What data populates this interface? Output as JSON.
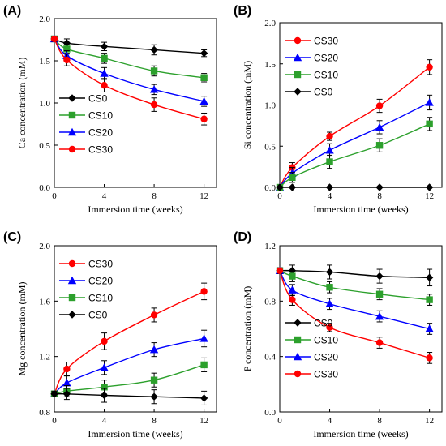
{
  "chart_data": [
    {
      "type": "line",
      "panel_label": "(A)",
      "title": "",
      "xlabel": "Immersion time (weeks)",
      "ylabel": "Ca concentration (mM)",
      "xlim": [
        0,
        13
      ],
      "ylim": [
        0,
        2
      ],
      "xticks": [
        "0",
        "4",
        "8",
        "12"
      ],
      "yticks": [
        "0.0",
        "0.5",
        "1.0",
        "1.5",
        "2.0"
      ],
      "legend_position": "bottom-left",
      "x": [
        0,
        1,
        4,
        8,
        12
      ],
      "series": [
        {
          "name": "CS0",
          "color": "#000000",
          "marker": "diamond",
          "values": [
            1.76,
            1.71,
            1.67,
            1.63,
            1.59
          ],
          "error": [
            0.03,
            0.05,
            0.05,
            0.06,
            0.04
          ]
        },
        {
          "name": "CS10",
          "color": "#2ca02c",
          "marker": "square",
          "values": [
            1.76,
            1.64,
            1.53,
            1.38,
            1.3
          ],
          "error": [
            0.03,
            0.05,
            0.06,
            0.06,
            0.05
          ]
        },
        {
          "name": "CS20",
          "color": "#0000ff",
          "marker": "triangle",
          "values": [
            1.76,
            1.56,
            1.35,
            1.16,
            1.02
          ],
          "error": [
            0.03,
            0.06,
            0.07,
            0.06,
            0.06
          ]
        },
        {
          "name": "CS30",
          "color": "#ff0000",
          "marker": "circle",
          "values": [
            1.76,
            1.51,
            1.21,
            0.98,
            0.81
          ],
          "error": [
            0.03,
            0.07,
            0.08,
            0.08,
            0.07
          ]
        }
      ]
    },
    {
      "type": "line",
      "panel_label": "(B)",
      "title": "",
      "xlabel": "Immersion time (weeks)",
      "ylabel": "Si concentration (mM)",
      "xlim": [
        0,
        13
      ],
      "ylim": [
        0,
        2
      ],
      "xticks": [
        "0",
        "4",
        "8",
        "12"
      ],
      "yticks": [
        "0.0",
        "0.5",
        "1.0",
        "1.5",
        "2.0"
      ],
      "legend_position": "top-left",
      "x": [
        0,
        1,
        4,
        8,
        12
      ],
      "series": [
        {
          "name": "CS30",
          "color": "#ff0000",
          "marker": "circle",
          "values": [
            0.0,
            0.24,
            0.62,
            0.99,
            1.46
          ],
          "error": [
            0.0,
            0.06,
            0.05,
            0.08,
            0.09
          ]
        },
        {
          "name": "CS20",
          "color": "#0000ff",
          "marker": "triangle",
          "values": [
            0.0,
            0.17,
            0.45,
            0.73,
            1.03
          ],
          "error": [
            0.0,
            0.07,
            0.08,
            0.08,
            0.09
          ]
        },
        {
          "name": "CS10",
          "color": "#2ca02c",
          "marker": "square",
          "values": [
            0.0,
            0.12,
            0.31,
            0.51,
            0.77
          ],
          "error": [
            0.0,
            0.06,
            0.08,
            0.08,
            0.08
          ]
        },
        {
          "name": "CS0",
          "color": "#000000",
          "marker": "diamond",
          "values": [
            0.0,
            0.0,
            0.0,
            0.0,
            0.0
          ],
          "error": [
            0,
            0,
            0,
            0,
            0
          ]
        }
      ]
    },
    {
      "type": "line",
      "panel_label": "(C)",
      "title": "",
      "xlabel": "Immersion time (weeks)",
      "ylabel": "Mg concentration (mM)",
      "xlim": [
        0,
        13
      ],
      "ylim": [
        0.8,
        2.0
      ],
      "xticks": [
        "0",
        "4",
        "8",
        "12"
      ],
      "yticks": [
        "0.8",
        "1.2",
        "1.6",
        "2.0"
      ],
      "legend_position": "top-left",
      "x": [
        0,
        1,
        4,
        8,
        12
      ],
      "series": [
        {
          "name": "CS30",
          "color": "#ff0000",
          "marker": "circle",
          "values": [
            0.93,
            1.11,
            1.31,
            1.5,
            1.67
          ],
          "error": [
            0.02,
            0.05,
            0.06,
            0.05,
            0.06
          ]
        },
        {
          "name": "CS20",
          "color": "#0000ff",
          "marker": "triangle",
          "values": [
            0.93,
            1.01,
            1.12,
            1.25,
            1.33
          ],
          "error": [
            0.02,
            0.05,
            0.05,
            0.05,
            0.06
          ]
        },
        {
          "name": "CS10",
          "color": "#2ca02c",
          "marker": "square",
          "values": [
            0.93,
            0.95,
            0.98,
            1.03,
            1.14
          ],
          "error": [
            0.02,
            0.04,
            0.05,
            0.05,
            0.05
          ]
        },
        {
          "name": "CS0",
          "color": "#000000",
          "marker": "diamond",
          "values": [
            0.93,
            0.93,
            0.92,
            0.91,
            0.9
          ],
          "error": [
            0.02,
            0.04,
            0.05,
            0.05,
            0.05
          ]
        }
      ]
    },
    {
      "type": "line",
      "panel_label": "(D)",
      "title": "",
      "xlabel": "Immersion time (weeks)",
      "ylabel": "P concentration (mM)",
      "xlim": [
        0,
        13
      ],
      "ylim": [
        0,
        1.2
      ],
      "xticks": [
        "0",
        "4",
        "8",
        "12"
      ],
      "yticks": [
        "0.0",
        "0.4",
        "0.8",
        "1.2"
      ],
      "legend_position": "bottom-left",
      "x": [
        0,
        1,
        4,
        8,
        12
      ],
      "series": [
        {
          "name": "CS0",
          "color": "#000000",
          "marker": "diamond",
          "values": [
            1.02,
            1.02,
            1.01,
            0.98,
            0.97
          ],
          "error": [
            0.02,
            0.04,
            0.05,
            0.05,
            0.06
          ]
        },
        {
          "name": "CS10",
          "color": "#2ca02c",
          "marker": "square",
          "values": [
            1.02,
            0.98,
            0.9,
            0.85,
            0.81
          ],
          "error": [
            0.02,
            0.04,
            0.04,
            0.04,
            0.04
          ]
        },
        {
          "name": "CS20",
          "color": "#0000ff",
          "marker": "triangle",
          "values": [
            1.02,
            0.88,
            0.78,
            0.69,
            0.6
          ],
          "error": [
            0.02,
            0.04,
            0.04,
            0.04,
            0.04
          ]
        },
        {
          "name": "CS30",
          "color": "#ff0000",
          "marker": "circle",
          "values": [
            1.02,
            0.81,
            0.61,
            0.5,
            0.39
          ],
          "error": [
            0.02,
            0.04,
            0.03,
            0.04,
            0.04
          ]
        }
      ]
    }
  ]
}
